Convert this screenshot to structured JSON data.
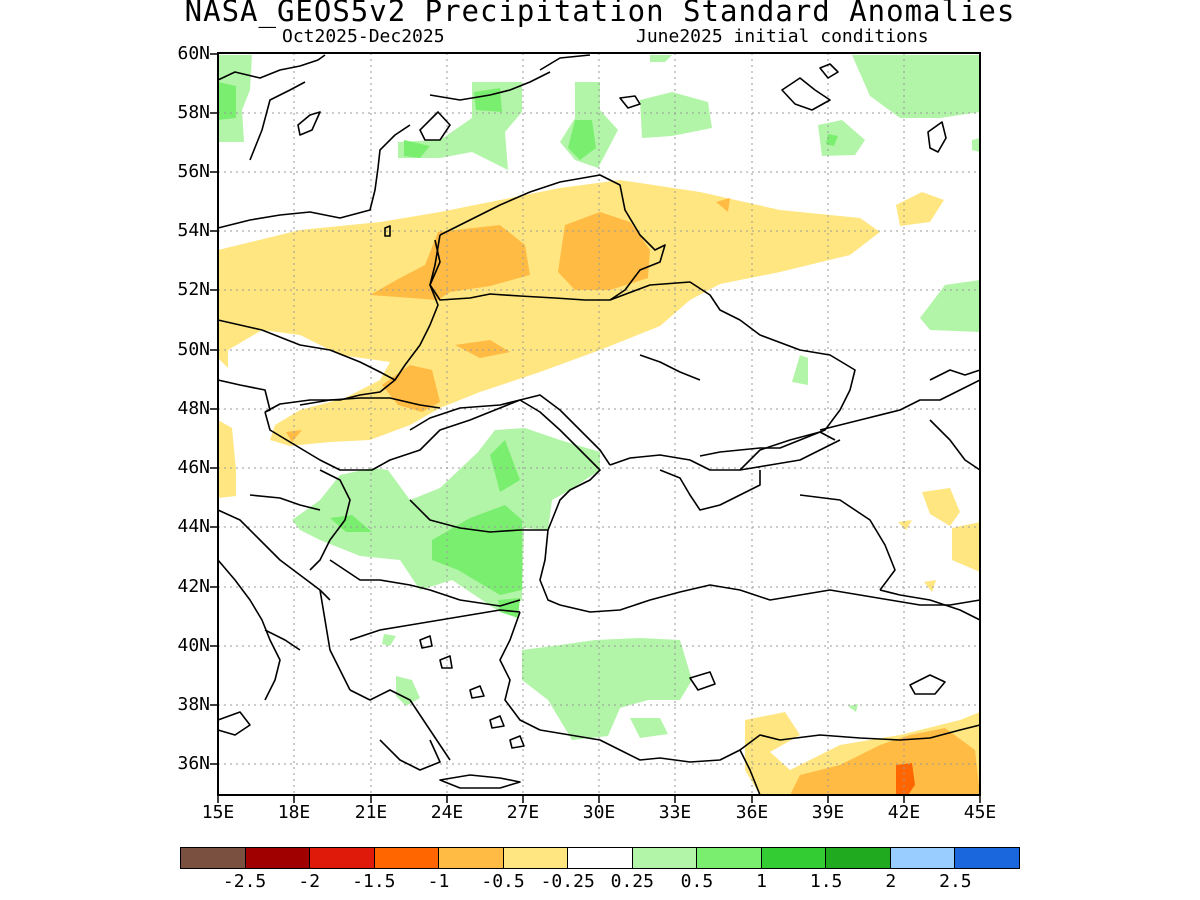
{
  "title": "NASA_GEOS5v2 Precipitation Standard Anomalies",
  "subtitle_left": "Oct2025-Dec2025",
  "subtitle_right": "June2025 initial conditions",
  "map": {
    "lon_range": [
      15,
      45
    ],
    "lat_range": [
      35,
      60
    ],
    "lat_ticks": [
      "60N",
      "58N",
      "56N",
      "54N",
      "52N",
      "50N",
      "48N",
      "46N",
      "44N",
      "42N",
      "40N",
      "38N",
      "36N"
    ],
    "lon_ticks": [
      "15E",
      "18E",
      "21E",
      "24E",
      "27E",
      "30E",
      "33E",
      "36E",
      "39E",
      "42E",
      "45E"
    ],
    "gridlines": "dotted"
  },
  "colorbar": {
    "colors": [
      "#7a5040",
      "#a00000",
      "#e01a0a",
      "#ff6600",
      "#ffbb44",
      "#ffe680",
      "#ffffff",
      "#b3f5a8",
      "#7aee6e",
      "#33cc33",
      "#1faa1f",
      "#99ccff",
      "#1a66dd"
    ],
    "labels": [
      "-2.5",
      "-2",
      "-1.5",
      "-1",
      "-0.5",
      "-0.25",
      "0.25",
      "0.5",
      "1",
      "1.5",
      "2",
      "2.5"
    ]
  }
}
